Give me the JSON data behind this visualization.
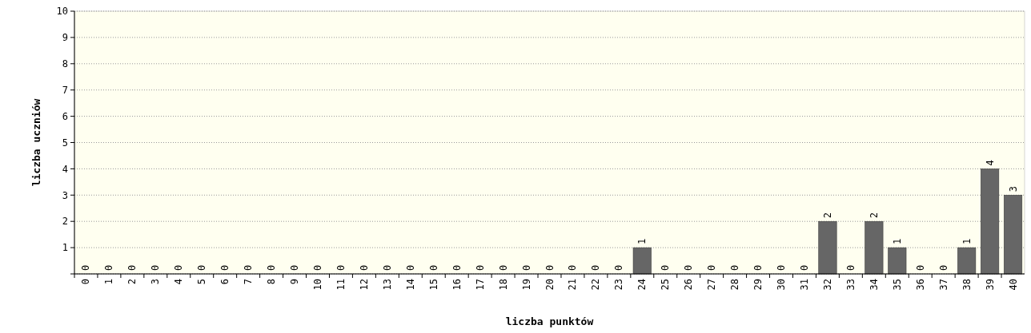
{
  "chart_data": {
    "type": "bar",
    "xlabel": "liczba punktów",
    "ylabel": "liczba uczniów",
    "categories": [
      "0",
      "1",
      "2",
      "3",
      "4",
      "5",
      "6",
      "7",
      "8",
      "9",
      "10",
      "11",
      "12",
      "13",
      "14",
      "15",
      "16",
      "17",
      "18",
      "19",
      "20",
      "21",
      "22",
      "23",
      "24",
      "25",
      "26",
      "27",
      "28",
      "29",
      "30",
      "31",
      "32",
      "33",
      "34",
      "35",
      "36",
      "37",
      "38",
      "39",
      "40"
    ],
    "values": [
      0,
      0,
      0,
      0,
      0,
      0,
      0,
      0,
      0,
      0,
      0,
      0,
      0,
      0,
      0,
      0,
      0,
      0,
      0,
      0,
      0,
      0,
      0,
      0,
      1,
      0,
      0,
      0,
      0,
      0,
      0,
      0,
      2,
      0,
      2,
      1,
      0,
      0,
      1,
      4,
      3
    ],
    "color": "#666666",
    "ylim": [
      0,
      10
    ],
    "yticks": [
      {
        "value": 0,
        "label": null
      },
      1,
      2,
      3,
      4,
      5,
      6,
      7,
      8,
      9,
      10
    ],
    "grid": "y",
    "data_labels": true
  }
}
